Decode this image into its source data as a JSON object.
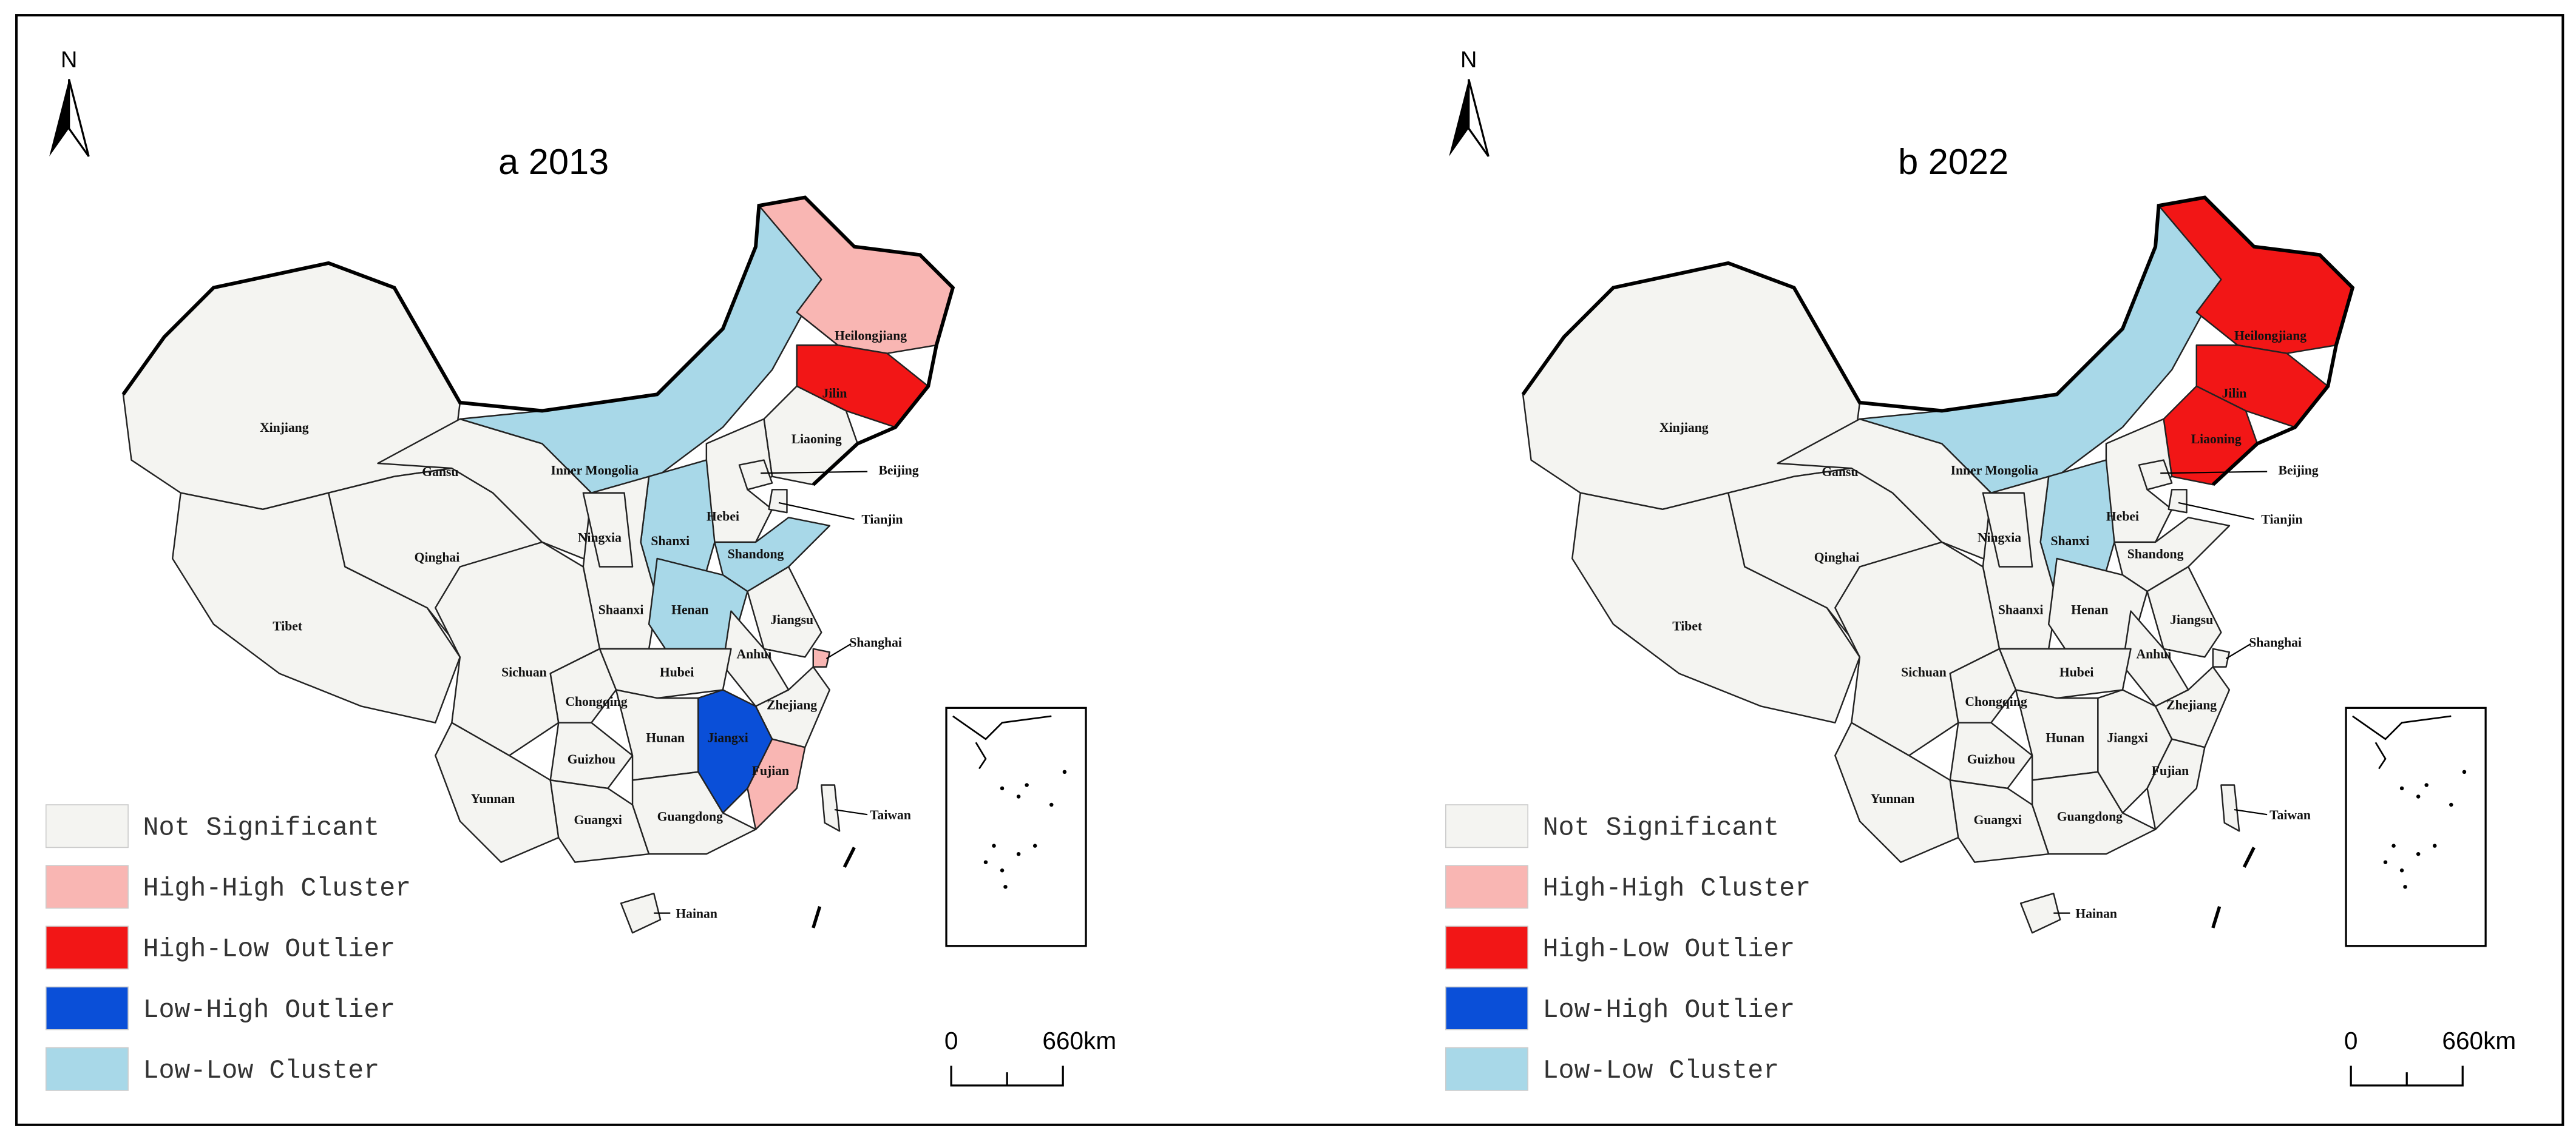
{
  "panels": [
    {
      "title": "a 2013",
      "north": "N",
      "legend": [
        {
          "label": "Not Significant",
          "color": "#f4f4f1"
        },
        {
          "label": "High-High Cluster",
          "color": "#f9b6b3"
        },
        {
          "label": "High-Low Outlier",
          "color": "#f21616"
        },
        {
          "label": "Low-High Outlier",
          "color": "#0a4fd8"
        },
        {
          "label": "Low-Low Cluster",
          "color": "#a8d8e8"
        }
      ],
      "scale": [
        "0",
        "660km"
      ],
      "provinces": [
        {
          "name": "Xinjiang",
          "cluster": 0
        },
        {
          "name": "Tibet",
          "cluster": 0
        },
        {
          "name": "Qinghai",
          "cluster": 0
        },
        {
          "name": "Gansu",
          "cluster": 0
        },
        {
          "name": "Inner Mongolia",
          "cluster": 4
        },
        {
          "name": "Heilongjiang",
          "cluster": 1
        },
        {
          "name": "Jilin",
          "cluster": 2
        },
        {
          "name": "Liaoning",
          "cluster": 0
        },
        {
          "name": "Hebei",
          "cluster": 0
        },
        {
          "name": "Beijing",
          "cluster": 0
        },
        {
          "name": "Tianjin",
          "cluster": 0
        },
        {
          "name": "Shanxi",
          "cluster": 4
        },
        {
          "name": "Shandong",
          "cluster": 4
        },
        {
          "name": "Shaanxi",
          "cluster": 0
        },
        {
          "name": "Ningxia",
          "cluster": 0
        },
        {
          "name": "Henan",
          "cluster": 4
        },
        {
          "name": "Jiangsu",
          "cluster": 0
        },
        {
          "name": "Anhui",
          "cluster": 0
        },
        {
          "name": "Shanghai",
          "cluster": 1
        },
        {
          "name": "Zhejiang",
          "cluster": 0
        },
        {
          "name": "Hubei",
          "cluster": 0
        },
        {
          "name": "Sichuan",
          "cluster": 0
        },
        {
          "name": "Chongqing",
          "cluster": 0
        },
        {
          "name": "Guizhou",
          "cluster": 0
        },
        {
          "name": "Hunan",
          "cluster": 0
        },
        {
          "name": "Jiangxi",
          "cluster": 3
        },
        {
          "name": "Fujian",
          "cluster": 1
        },
        {
          "name": "Yunnan",
          "cluster": 0
        },
        {
          "name": "Guangxi",
          "cluster": 0
        },
        {
          "name": "Guangdong",
          "cluster": 0
        },
        {
          "name": "Hainan",
          "cluster": 0
        },
        {
          "name": "Taiwan",
          "cluster": 0
        }
      ]
    },
    {
      "title": "b 2022",
      "north": "N",
      "legend": [
        {
          "label": "Not Significant",
          "color": "#f4f4f1"
        },
        {
          "label": "High-High Cluster",
          "color": "#f9b6b3"
        },
        {
          "label": "High-Low Outlier",
          "color": "#f21616"
        },
        {
          "label": "Low-High Outlier",
          "color": "#0a4fd8"
        },
        {
          "label": "Low-Low Cluster",
          "color": "#a8d8e8"
        }
      ],
      "scale": [
        "0",
        "660km"
      ],
      "provinces": [
        {
          "name": "Xinjiang",
          "cluster": 0
        },
        {
          "name": "Tibet",
          "cluster": 0
        },
        {
          "name": "Qinghai",
          "cluster": 0
        },
        {
          "name": "Gansu",
          "cluster": 0
        },
        {
          "name": "Inner Mongolia",
          "cluster": 4
        },
        {
          "name": "Heilongjiang",
          "cluster": 2
        },
        {
          "name": "Jilin",
          "cluster": 2
        },
        {
          "name": "Liaoning",
          "cluster": 2
        },
        {
          "name": "Hebei",
          "cluster": 0
        },
        {
          "name": "Beijing",
          "cluster": 0
        },
        {
          "name": "Tianjin",
          "cluster": 0
        },
        {
          "name": "Shanxi",
          "cluster": 4
        },
        {
          "name": "Shandong",
          "cluster": 0
        },
        {
          "name": "Shaanxi",
          "cluster": 0
        },
        {
          "name": "Ningxia",
          "cluster": 0
        },
        {
          "name": "Henan",
          "cluster": 0
        },
        {
          "name": "Jiangsu",
          "cluster": 0
        },
        {
          "name": "Anhui",
          "cluster": 0
        },
        {
          "name": "Shanghai",
          "cluster": 0
        },
        {
          "name": "Zhejiang",
          "cluster": 0
        },
        {
          "name": "Hubei",
          "cluster": 0
        },
        {
          "name": "Sichuan",
          "cluster": 0
        },
        {
          "name": "Chongqing",
          "cluster": 0
        },
        {
          "name": "Guizhou",
          "cluster": 0
        },
        {
          "name": "Hunan",
          "cluster": 0
        },
        {
          "name": "Jiangxi",
          "cluster": 0
        },
        {
          "name": "Fujian",
          "cluster": 0
        },
        {
          "name": "Yunnan",
          "cluster": 0
        },
        {
          "name": "Guangxi",
          "cluster": 0
        },
        {
          "name": "Guangdong",
          "cluster": 0
        },
        {
          "name": "Hainan",
          "cluster": 0
        },
        {
          "name": "Taiwan",
          "cluster": 0
        }
      ]
    }
  ]
}
